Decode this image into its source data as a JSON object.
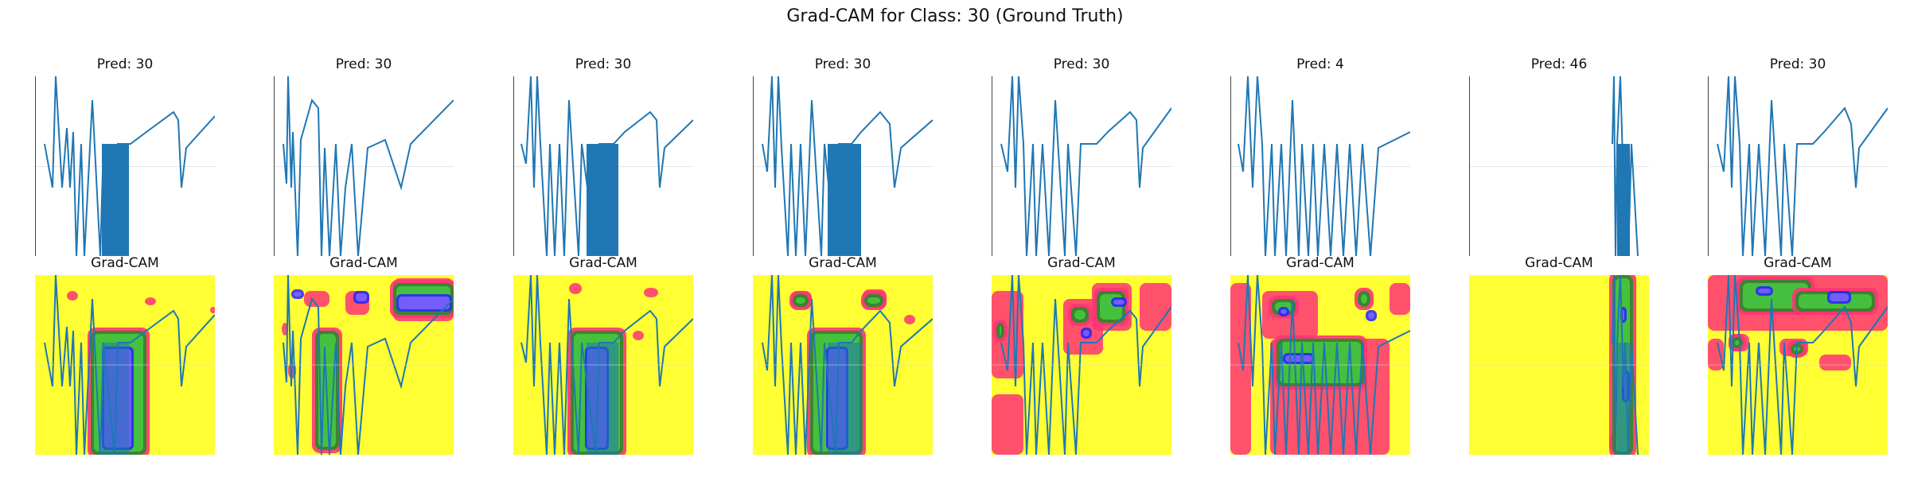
{
  "figure": {
    "title": "Grad-CAM for Class: 30 (Ground Truth)"
  },
  "chart_data": {
    "type": "line",
    "title": "Grad-CAM for Class: 30 (Ground Truth)",
    "grid": true,
    "line_color": "#1f77b4",
    "heatmap_colors": [
      "#ffff33",
      "#ff3377",
      "#2a8a2a",
      "#2222ff",
      "#4cff4c",
      "#8866ff"
    ],
    "panels": [
      {
        "pred_label": "Pred: 30",
        "heatmap_title": "Grad-CAM",
        "prediction": 30
      },
      {
        "pred_label": "Pred: 30",
        "heatmap_title": "Grad-CAM",
        "prediction": 30
      },
      {
        "pred_label": "Pred: 30",
        "heatmap_title": "Grad-CAM",
        "prediction": 30
      },
      {
        "pred_label": "Pred: 30",
        "heatmap_title": "Grad-CAM",
        "prediction": 30
      },
      {
        "pred_label": "Pred: 30",
        "heatmap_title": "Grad-CAM",
        "prediction": 30
      },
      {
        "pred_label": "Pred: 4",
        "heatmap_title": "Grad-CAM",
        "prediction": 4
      },
      {
        "pred_label": "Pred: 46",
        "heatmap_title": "Grad-CAM",
        "prediction": 46
      },
      {
        "pred_label": "Pred: 30",
        "heatmap_title": "Grad-CAM",
        "prediction": 30
      }
    ]
  }
}
